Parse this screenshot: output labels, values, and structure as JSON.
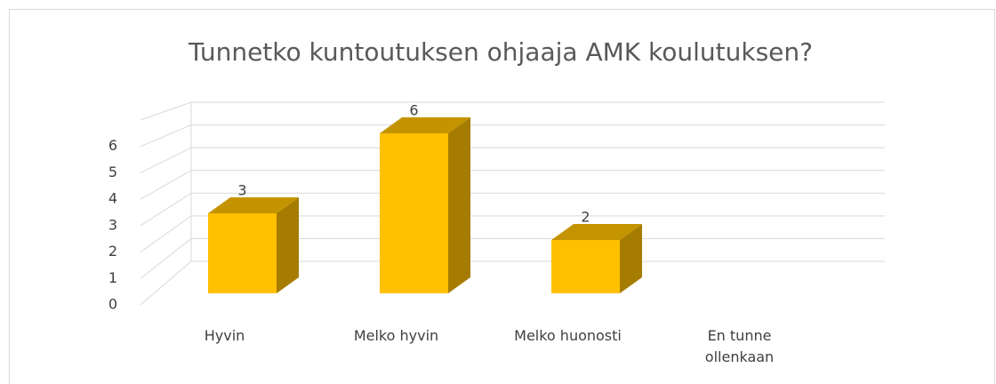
{
  "chart_data": {
    "type": "bar3d",
    "title": "Tunnetko kuntoutuksen ohjaaja AMK koulutuksen?",
    "categories": [
      "Hyvin",
      "Melko hyvin",
      "Melko huonosti",
      "En tunne ollenkaan"
    ],
    "values": [
      3,
      6,
      2,
      0
    ],
    "value_labels": [
      "3",
      "6",
      "2",
      null
    ],
    "color": "#ffc000",
    "ylim": [
      0,
      7
    ],
    "yticks": [
      0,
      1,
      2,
      3,
      4,
      5,
      6
    ],
    "grid": true
  }
}
